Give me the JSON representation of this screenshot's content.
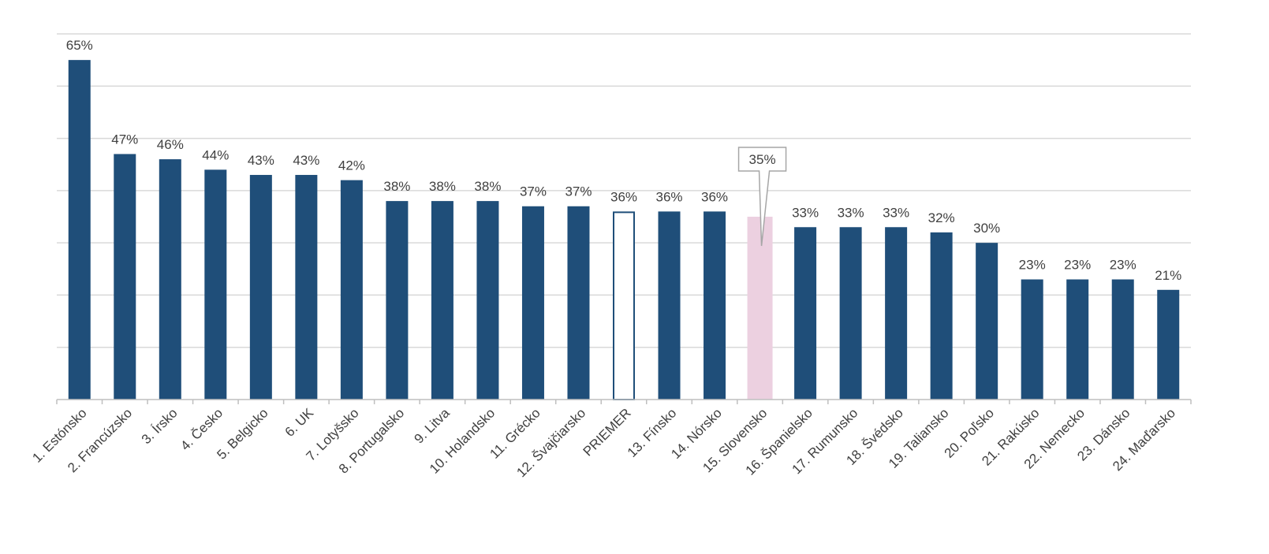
{
  "chart_data": {
    "type": "bar",
    "categories": [
      "1. Estónsko",
      "2. Francúzsko",
      "3. Írsko",
      "4. Česko",
      "5. Belgicko",
      "6. UK",
      "7. Lotyšsko",
      "8. Portugalsko",
      "9. Litva",
      "10. Holandsko",
      "11. Grécko",
      "12. Švajčiarsko",
      "PRIEMER",
      "13. Fínsko",
      "14. Nórsko",
      "15. Slovensko",
      "16. Španielsko",
      "17. Rumunsko",
      "18. Švédsko",
      "19. Taliansko",
      "20. Poľsko",
      "21. Rakúsko",
      "22. Nemecko",
      "23. Dánsko",
      "24. Maďarsko"
    ],
    "values": [
      65,
      47,
      46,
      44,
      43,
      43,
      42,
      38,
      38,
      38,
      37,
      37,
      36,
      36,
      36,
      35,
      33,
      33,
      33,
      32,
      30,
      23,
      23,
      23,
      21
    ],
    "labels": [
      "65%",
      "47%",
      "46%",
      "44%",
      "43%",
      "43%",
      "42%",
      "38%",
      "38%",
      "38%",
      "37%",
      "37%",
      "36%",
      "36%",
      "36%",
      "35%",
      "33%",
      "33%",
      "33%",
      "32%",
      "30%",
      "23%",
      "23%",
      "23%",
      "21%"
    ],
    "bar_styles": [
      "normal",
      "normal",
      "normal",
      "normal",
      "normal",
      "normal",
      "normal",
      "normal",
      "normal",
      "normal",
      "normal",
      "normal",
      "average",
      "normal",
      "normal",
      "highlight",
      "normal",
      "normal",
      "normal",
      "normal",
      "normal",
      "normal",
      "normal",
      "normal",
      "normal"
    ],
    "callout_index": 15,
    "ylim": [
      0,
      70
    ],
    "grid": true,
    "colors": {
      "bar": "#1f4e79",
      "average_fill": "#ffffff",
      "average_stroke": "#1f4e79",
      "highlight": "#ecd0e0",
      "gridline": "#d9d9d9",
      "axis": "#bfbfbf",
      "label_text": "#404040",
      "callout_border": "#a6a6a6"
    }
  }
}
